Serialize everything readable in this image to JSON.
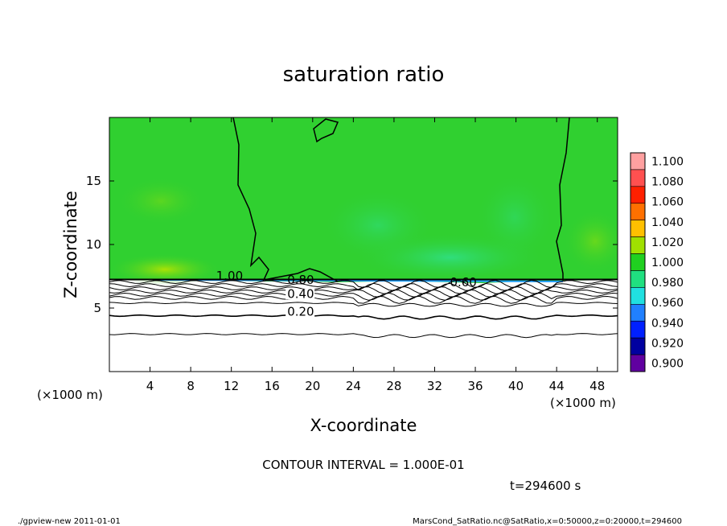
{
  "chart_data": {
    "type": "heatmap",
    "title": "saturation ratio",
    "xlabel": "X-coordinate",
    "ylabel": "Z-coordinate",
    "x_unit_left": "(×1000 m)",
    "x_unit_right": "(×1000 m)",
    "xlim": [
      0,
      50
    ],
    "ylim": [
      0,
      20
    ],
    "x_ticks": [
      4,
      8,
      12,
      16,
      20,
      24,
      28,
      32,
      36,
      40,
      44,
      48
    ],
    "y_ticks": [
      5,
      10,
      15
    ],
    "colorbar": {
      "levels": [
        "1.100",
        "1.080",
        "1.060",
        "1.040",
        "1.020",
        "1.000",
        "0.980",
        "0.960",
        "0.940",
        "0.920",
        "0.900"
      ],
      "colors": [
        "#ffa0a0",
        "#ff5050",
        "#ff2000",
        "#ff7000",
        "#ffc000",
        "#a0e000",
        "#20d020",
        "#20e080",
        "#20e0e0",
        "#2080ff",
        "#0020ff",
        "#0000a0",
        "#6000a0"
      ]
    },
    "contour_labels": [
      {
        "text": "1.00",
        "x": 10.5,
        "z": 7.2
      },
      {
        "text": "0.80",
        "x": 17.5,
        "z": 6.9
      },
      {
        "text": "0.60",
        "x": 33.5,
        "z": 6.7
      },
      {
        "text": "0.40",
        "x": 17.5,
        "z": 5.8
      },
      {
        "text": "0.20",
        "x": 17.5,
        "z": 4.4
      }
    ],
    "field_description_colors": {
      "upper_region": "#20d020",
      "lower_region": "#ffffff"
    },
    "contour_interval": "CONTOUR INTERVAL = 1.000E-01",
    "time_label": "t=294600 s"
  },
  "footer": {
    "left": "./gpview-new   2011-01-01",
    "right": "MarsCond_SatRatio.nc@SatRatio,x=0:50000,z=0:20000,t=294600"
  }
}
